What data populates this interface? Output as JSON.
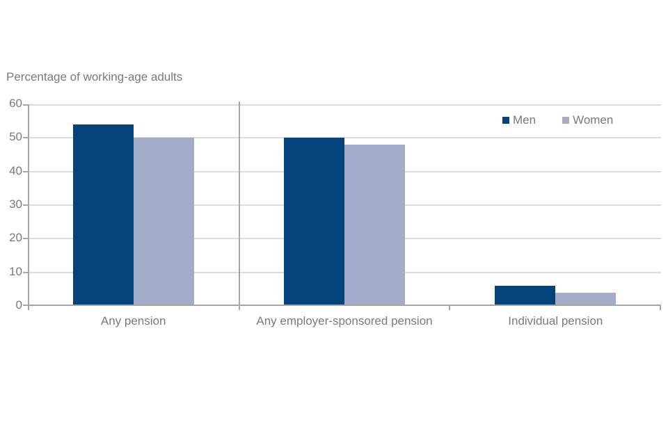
{
  "chart_data": {
    "type": "bar",
    "title": "Percentage of working-age adults",
    "categories": [
      "Any pension",
      "Any employer-sponsored pension",
      "Individual pension"
    ],
    "series": [
      {
        "name": "Men",
        "color": "#05437c",
        "values": [
          54,
          50,
          6
        ]
      },
      {
        "name": "Women",
        "color": "#a3adc9",
        "values": [
          50,
          48,
          4
        ]
      }
    ],
    "ylim": [
      0,
      60
    ],
    "yticks": [
      0,
      10,
      20,
      30,
      40,
      50,
      60
    ],
    "grid": "horizontal",
    "legend_position": "top-right",
    "colors": {
      "gridline": "#dcdcdc",
      "axis": "#a6a6a6",
      "text": "#7a7a7a"
    }
  }
}
